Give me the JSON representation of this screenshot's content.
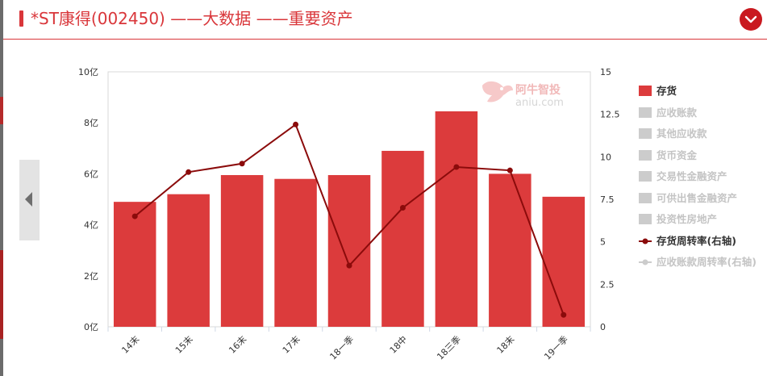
{
  "header": {
    "title": "*ST康得(002450) ——大数据 ——重要资产"
  },
  "watermark": {
    "name": "阿牛智投",
    "domain": "aniu.com"
  },
  "colors": {
    "accent": "#d9363a",
    "bar": "#dc3b3c",
    "line": "#8b0b0b",
    "inactive": "#cccccc"
  },
  "legend": [
    {
      "label": "存货",
      "kind": "bar",
      "active": true
    },
    {
      "label": "应收账款",
      "kind": "bar",
      "active": false
    },
    {
      "label": "其他应收款",
      "kind": "bar",
      "active": false
    },
    {
      "label": "货币资金",
      "kind": "bar",
      "active": false
    },
    {
      "label": "交易性金融资产",
      "kind": "bar",
      "active": false
    },
    {
      "label": "可供出售金融资产",
      "kind": "bar",
      "active": false
    },
    {
      "label": "投资性房地产",
      "kind": "bar",
      "active": false
    },
    {
      "label": "存货周转率(右轴)",
      "kind": "line",
      "active": true
    },
    {
      "label": "应收账款周转率(右轴)",
      "kind": "line",
      "active": false
    }
  ],
  "chart_data": {
    "type": "bar",
    "categories": [
      "14末",
      "15末",
      "16末",
      "17末",
      "18一季",
      "18中",
      "18三季",
      "18末",
      "19一季"
    ],
    "series": [
      {
        "name": "存货",
        "type": "bar",
        "axis": "left",
        "values": [
          4.9,
          5.2,
          5.95,
          5.8,
          5.95,
          6.9,
          8.45,
          6.0,
          5.1
        ]
      },
      {
        "name": "存货周转率(右轴)",
        "type": "line",
        "axis": "right",
        "values": [
          6.5,
          9.1,
          9.6,
          11.9,
          3.6,
          7.0,
          9.4,
          9.2,
          0.7
        ]
      }
    ],
    "y_left": {
      "range": [
        0,
        10
      ],
      "ticks": [
        0,
        2,
        4,
        6,
        8,
        10
      ],
      "tick_labels": [
        "0亿",
        "2亿",
        "4亿",
        "6亿",
        "8亿",
        "10亿"
      ]
    },
    "y_right": {
      "range": [
        0,
        15
      ],
      "ticks": [
        0,
        2.5,
        5,
        7.5,
        10,
        12.5,
        15
      ],
      "tick_labels": [
        "0",
        "2.5",
        "5",
        "7.5",
        "10",
        "12.5",
        "15"
      ]
    },
    "grid": false,
    "legend_position": "right"
  }
}
